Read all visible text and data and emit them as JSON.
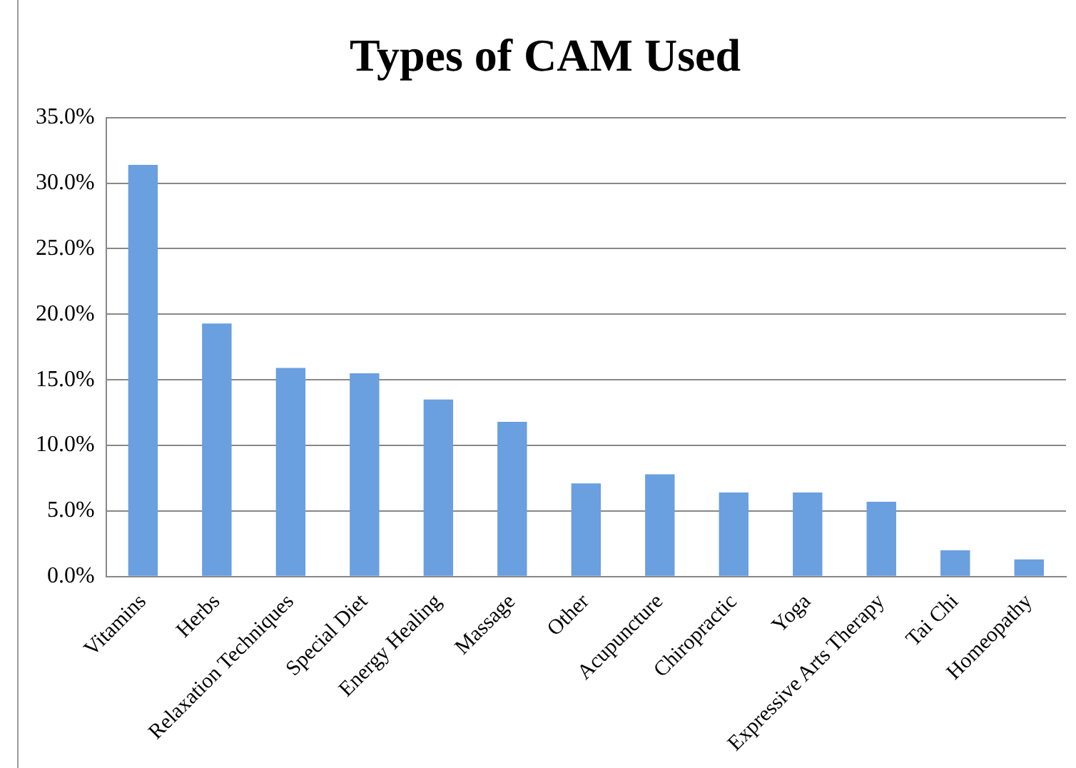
{
  "chart_data": {
    "type": "bar",
    "title": "Types of CAM Used",
    "categories": [
      "Vitamins",
      "Herbs",
      "Relaxation Techniques",
      "Special Diet",
      "Energy Healing",
      "Massage",
      "Other",
      "Acupuncture",
      "Chiropractic",
      "Yoga",
      "Expressive Arts Therapy",
      "Tai Chi",
      "Homeopathy"
    ],
    "values": [
      31.4,
      19.3,
      15.9,
      15.5,
      13.5,
      11.8,
      7.1,
      7.8,
      6.4,
      6.4,
      5.7,
      2.0,
      1.3
    ],
    "color": "#6a9fe0",
    "ylim": [
      0,
      35
    ],
    "yticks": [
      {
        "value": 0,
        "label": "0.0%"
      },
      {
        "value": 5,
        "label": "5.0%"
      },
      {
        "value": 10,
        "label": "10.0%"
      },
      {
        "value": 15,
        "label": "15.0%"
      },
      {
        "value": 20,
        "label": "20.0%"
      },
      {
        "value": 25,
        "label": "25.0%"
      },
      {
        "value": 30,
        "label": "30.0%"
      },
      {
        "value": 35,
        "label": "35.0%"
      }
    ],
    "grid": "y",
    "legend": false
  }
}
